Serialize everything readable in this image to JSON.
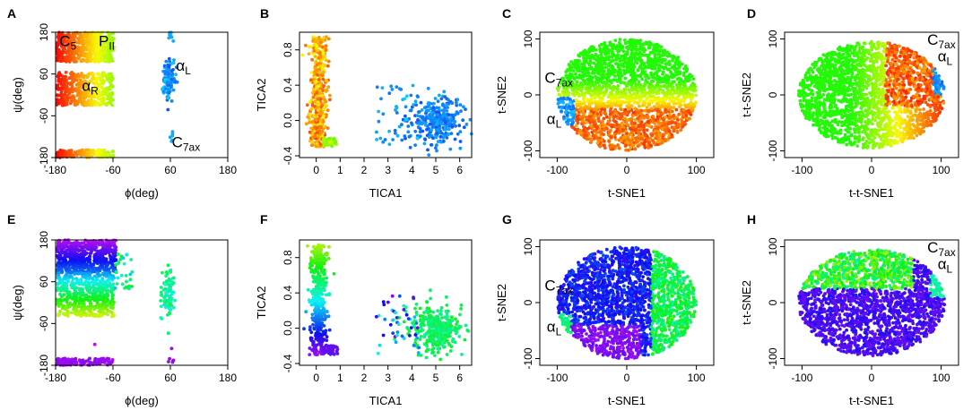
{
  "figure": {
    "panels": [
      "A",
      "B",
      "C",
      "D",
      "E",
      "F",
      "G",
      "H"
    ]
  },
  "chart_data": [
    {
      "panel": "A",
      "type": "scatter",
      "variant": "rama",
      "colorscheme": "warm",
      "xlabel": "ϕ(deg)",
      "ylabel": "ψ(deg)",
      "xlim": [
        -180,
        180
      ],
      "ylim": [
        -180,
        180
      ],
      "xticks": [
        -180,
        -60,
        60,
        180
      ],
      "yticks": [
        -180,
        -60,
        60,
        180
      ],
      "xtick_labels": [
        "-180",
        "-60",
        "60",
        "180"
      ],
      "ytick_labels": [
        "-180",
        "-60",
        "60",
        "180"
      ],
      "annotations": [
        {
          "main": "C",
          "sub": "5",
          "x": -172,
          "y": 140
        },
        {
          "main": "P",
          "sub": "II",
          "x": -90,
          "y": 140
        },
        {
          "main": "α",
          "sub": "R",
          "x": -125,
          "y": 12
        },
        {
          "main": "α",
          "sub": "L",
          "x": 72,
          "y": 70
        },
        {
          "main": "C",
          "sub": "7ax",
          "x": 63,
          "y": -150
        }
      ]
    },
    {
      "panel": "B",
      "type": "scatter",
      "variant": "tica",
      "colorscheme": "warm",
      "xlabel": "TICA1",
      "ylabel": "TICA2",
      "xlim": [
        -0.7,
        6.5
      ],
      "ylim": [
        -0.42,
        1.0
      ],
      "xticks": [
        0,
        1,
        2,
        3,
        4,
        5,
        6
      ],
      "yticks": [
        -0.4,
        0.0,
        0.4,
        0.8
      ],
      "xtick_labels": [
        "0",
        "1",
        "2",
        "3",
        "4",
        "5",
        "6"
      ],
      "ytick_labels": [
        "-0.4",
        "0.0",
        "0.4",
        "0.8"
      ],
      "annotations": []
    },
    {
      "panel": "C",
      "type": "scatter",
      "variant": "tsne",
      "colorscheme": "warm",
      "xlabel": "t-SNE1",
      "ylabel": "t-SNE2",
      "xlim": [
        -125,
        125
      ],
      "ylim": [
        -112,
        112
      ],
      "xticks": [
        -100,
        0,
        100
      ],
      "yticks": [
        -100,
        0,
        100
      ],
      "xtick_labels": [
        "-100",
        "0",
        "100"
      ],
      "ytick_labels": [
        "-100",
        "0",
        "100"
      ],
      "annotations": [
        {
          "main": "C",
          "sub": "7ax",
          "x": -118,
          "y": 22
        },
        {
          "main": "α",
          "sub": "L",
          "x": -115,
          "y": -52
        }
      ]
    },
    {
      "panel": "D",
      "type": "scatter",
      "variant": "ttsne",
      "colorscheme": "warm",
      "xlabel": "t-t-SNE1",
      "ylabel": "t-t-SNE2",
      "xlim": [
        -125,
        125
      ],
      "ylim": [
        -112,
        112
      ],
      "xticks": [
        -100,
        0,
        100
      ],
      "yticks": [
        -100,
        0,
        100
      ],
      "xtick_labels": [
        "-100",
        "0",
        "100"
      ],
      "ytick_labels": [
        "-100",
        "0",
        "100"
      ],
      "annotations": [
        {
          "main": "C",
          "sub": "7ax",
          "x": 80,
          "y": 90
        },
        {
          "main": "α",
          "sub": "L",
          "x": 95,
          "y": 60
        }
      ]
    },
    {
      "panel": "E",
      "type": "scatter",
      "variant": "rama",
      "colorscheme": "cool",
      "xlabel": "ϕ(deg)",
      "ylabel": "ψ(deg)",
      "xlim": [
        -180,
        180
      ],
      "ylim": [
        -180,
        180
      ],
      "xticks": [
        -180,
        -60,
        60,
        180
      ],
      "yticks": [
        -180,
        -60,
        60,
        180
      ],
      "xtick_labels": [
        "-180",
        "-60",
        "60",
        "180"
      ],
      "ytick_labels": [
        "-180",
        "-60",
        "60",
        "180"
      ],
      "annotations": []
    },
    {
      "panel": "F",
      "type": "scatter",
      "variant": "tica",
      "colorscheme": "cool",
      "xlabel": "TICA1",
      "ylabel": "TICA2",
      "xlim": [
        -0.7,
        6.5
      ],
      "ylim": [
        -0.42,
        1.0
      ],
      "xticks": [
        0,
        1,
        2,
        3,
        4,
        5,
        6
      ],
      "yticks": [
        -0.4,
        0.0,
        0.4,
        0.8
      ],
      "xtick_labels": [
        "0",
        "1",
        "2",
        "3",
        "4",
        "5",
        "6"
      ],
      "ytick_labels": [
        "-0.4",
        "0.0",
        "0.4",
        "0.8"
      ],
      "annotations": []
    },
    {
      "panel": "G",
      "type": "scatter",
      "variant": "tsne",
      "colorscheme": "cool",
      "xlabel": "t-SNE1",
      "ylabel": "t-SNE2",
      "xlim": [
        -125,
        125
      ],
      "ylim": [
        -112,
        112
      ],
      "xticks": [
        -100,
        0,
        100
      ],
      "yticks": [
        -100,
        0,
        100
      ],
      "xtick_labels": [
        "-100",
        "0",
        "100"
      ],
      "ytick_labels": [
        "-100",
        "0",
        "100"
      ],
      "annotations": [
        {
          "main": "C",
          "sub": "7ax",
          "x": -118,
          "y": 22
        },
        {
          "main": "α",
          "sub": "L",
          "x": -115,
          "y": -52
        }
      ]
    },
    {
      "panel": "H",
      "type": "scatter",
      "variant": "ttsne",
      "colorscheme": "cool",
      "xlabel": "t-t-SNE1",
      "ylabel": "t-t-SNE2",
      "xlim": [
        -125,
        125
      ],
      "ylim": [
        -112,
        112
      ],
      "xticks": [
        -100,
        0,
        100
      ],
      "yticks": [
        -100,
        0,
        100
      ],
      "xtick_labels": [
        "-100",
        "0",
        "100"
      ],
      "ytick_labels": [
        "-100",
        "0",
        "100"
      ],
      "annotations": [
        {
          "main": "C",
          "sub": "7ax",
          "x": 80,
          "y": 90
        },
        {
          "main": "α",
          "sub": "L",
          "x": 95,
          "y": 60
        }
      ]
    }
  ]
}
